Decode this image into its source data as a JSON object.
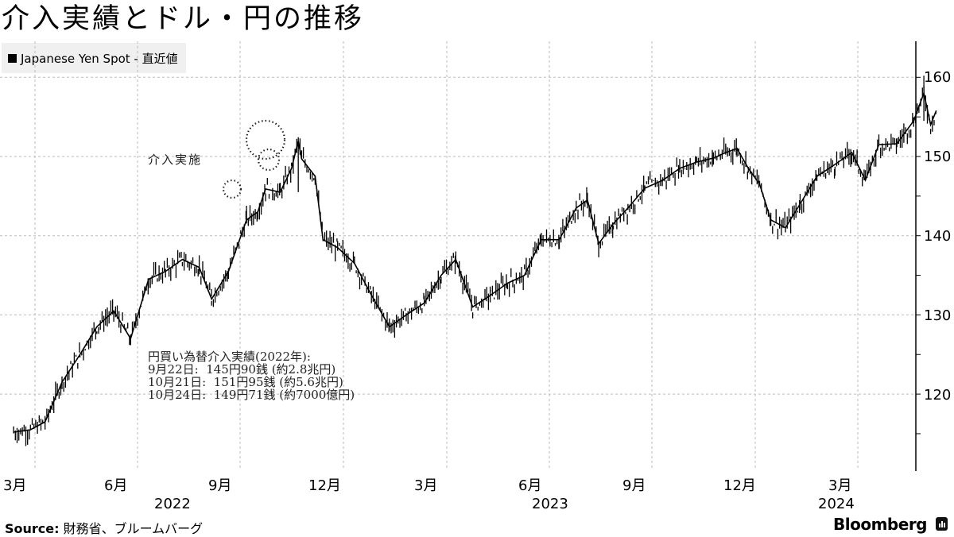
{
  "title": "介入実績とドル・円の推移",
  "legend": {
    "label": "Japanese Yen Spot - 直近値",
    "swatch_color": "#000000"
  },
  "annotations": {
    "intervention_label": "介入実施",
    "note_lines": [
      "円買い為替介入実績(2022年):",
      "9月22日:  145円90銭 (約2.8兆円)",
      "10月21日:  151円95銭 (約5.6兆円)",
      "10月24日:  149円71銭 (約7000億円)"
    ]
  },
  "x_axis": {
    "ticks": [
      "3月",
      "6月",
      "9月",
      "12月",
      "3月",
      "6月",
      "9月",
      "12月",
      "3月"
    ],
    "years": [
      "2022",
      "2023",
      "2024"
    ]
  },
  "y_axis": {
    "ticks": [
      "160",
      "150",
      "140",
      "130",
      "120"
    ]
  },
  "footer": {
    "source_label": "Source:",
    "source_text": "財務省、ブルームバーグ",
    "brand": "Bloomberg"
  },
  "chart_data": {
    "type": "line",
    "title": "介入実績とドル・円の推移",
    "series": [
      {
        "name": "Japanese Yen Spot - 直近値",
        "style": "ohlc-bars"
      }
    ],
    "xlabel": "",
    "ylabel": "",
    "ylim": [
      110,
      165
    ],
    "y_ticks": [
      120,
      130,
      140,
      150,
      160
    ],
    "x_tick_labels": [
      "3月 2022",
      "6月 2022",
      "9月 2022",
      "12月 2022",
      "3月 2023",
      "6月 2023",
      "9月 2023",
      "12月 2023",
      "3月 2024"
    ],
    "grid": true,
    "legend_position": "top-left",
    "points": [
      [
        "2022-02-10",
        115.2
      ],
      [
        "2022-02-25",
        115.5
      ],
      [
        "2022-03-10",
        116.5
      ],
      [
        "2022-03-25",
        121.5
      ],
      [
        "2022-04-10",
        125.0
      ],
      [
        "2022-04-25",
        128.5
      ],
      [
        "2022-05-10",
        130.5
      ],
      [
        "2022-05-25",
        127.0
      ],
      [
        "2022-06-10",
        134.5
      ],
      [
        "2022-06-25",
        135.5
      ],
      [
        "2022-07-10",
        137.0
      ],
      [
        "2022-07-25",
        136.0
      ],
      [
        "2022-08-05",
        132.0
      ],
      [
        "2022-08-20",
        135.5
      ],
      [
        "2022-09-05",
        142.0
      ],
      [
        "2022-09-15",
        143.0
      ],
      [
        "2022-09-22",
        145.9
      ],
      [
        "2022-10-05",
        145.5
      ],
      [
        "2022-10-15",
        148.5
      ],
      [
        "2022-10-21",
        151.95
      ],
      [
        "2022-10-24",
        149.71
      ],
      [
        "2022-11-05",
        147.5
      ],
      [
        "2022-11-12",
        139.5
      ],
      [
        "2022-11-25",
        138.5
      ],
      [
        "2022-12-10",
        136.5
      ],
      [
        "2022-12-25",
        132.5
      ],
      [
        "2023-01-10",
        128.5
      ],
      [
        "2023-01-25",
        130.0
      ],
      [
        "2023-02-10",
        131.5
      ],
      [
        "2023-02-25",
        135.0
      ],
      [
        "2023-03-10",
        137.0
      ],
      [
        "2023-03-25",
        131.0
      ],
      [
        "2023-04-10",
        132.5
      ],
      [
        "2023-04-25",
        134.0
      ],
      [
        "2023-05-10",
        135.0
      ],
      [
        "2023-05-25",
        139.5
      ],
      [
        "2023-06-10",
        139.5
      ],
      [
        "2023-06-25",
        143.5
      ],
      [
        "2023-07-05",
        144.5
      ],
      [
        "2023-07-15",
        139.0
      ],
      [
        "2023-07-28",
        141.5
      ],
      [
        "2023-08-10",
        143.5
      ],
      [
        "2023-08-25",
        146.0
      ],
      [
        "2023-09-10",
        147.0
      ],
      [
        "2023-09-25",
        148.5
      ],
      [
        "2023-10-10",
        149.3
      ],
      [
        "2023-10-25",
        149.8
      ],
      [
        "2023-11-05",
        150.5
      ],
      [
        "2023-11-15",
        151.0
      ],
      [
        "2023-11-25",
        148.5
      ],
      [
        "2023-12-05",
        146.5
      ],
      [
        "2023-12-15",
        142.0
      ],
      [
        "2023-12-28",
        141.0
      ],
      [
        "2024-01-10",
        144.0
      ],
      [
        "2024-01-25",
        147.5
      ],
      [
        "2024-02-10",
        149.0
      ],
      [
        "2024-02-25",
        150.5
      ],
      [
        "2024-03-08",
        147.0
      ],
      [
        "2024-03-20",
        151.5
      ],
      [
        "2024-04-05",
        151.6
      ],
      [
        "2024-04-20",
        154.5
      ],
      [
        "2024-04-29",
        158.0
      ],
      [
        "2024-05-05",
        154.0
      ],
      [
        "2024-05-10",
        155.8
      ]
    ],
    "interventions": [
      {
        "date": "2022-09-22",
        "rate": 145.9,
        "amount": "約2.8兆円"
      },
      {
        "date": "2022-10-21",
        "rate": 151.95,
        "amount": "約5.6兆円"
      },
      {
        "date": "2022-10-24",
        "rate": 149.71,
        "amount": "約7000億円"
      }
    ]
  }
}
